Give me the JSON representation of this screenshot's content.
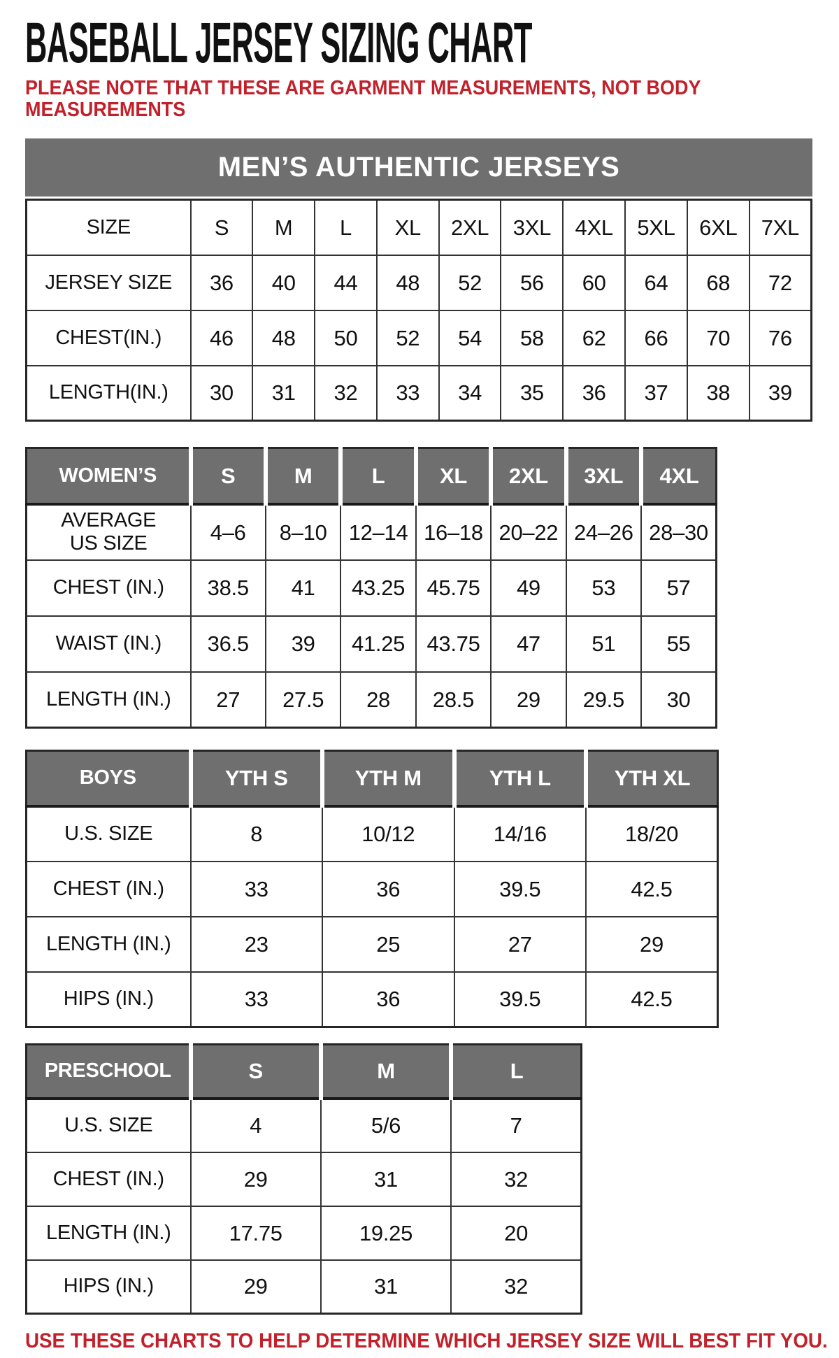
{
  "page": {
    "title": "BASEBALL JERSEY SIZING CHART",
    "note_lines": [
      "PLEASE NOTE THAT THESE ARE GARMENT MEASUREMENTS, NOT BODY",
      "MEASUREMENTS"
    ],
    "footer_note": "USE THESE CHARTS TO HELP DETERMINE WHICH JERSEY SIZE WILL BEST FIT YOU."
  },
  "colors": {
    "header_gray": "#6f6f6f",
    "note_red": "#c2202a",
    "border_dark": "#333333",
    "text_black": "#111111"
  },
  "tables": {
    "mens": {
      "banner": "MEN’S AUTHENTIC JERSEYS",
      "header": [
        "SIZE",
        "S",
        "M",
        "L",
        "XL",
        "2XL",
        "3XL",
        "4XL",
        "5XL",
        "6XL",
        "7XL"
      ],
      "rows": [
        [
          "JERSEY SIZE",
          "36",
          "40",
          "44",
          "48",
          "52",
          "56",
          "60",
          "64",
          "68",
          "72"
        ],
        [
          "CHEST(IN.)",
          "46",
          "48",
          "50",
          "52",
          "54",
          "58",
          "62",
          "66",
          "70",
          "76"
        ],
        [
          "LENGTH(IN.)",
          "30",
          "31",
          "32",
          "33",
          "34",
          "35",
          "36",
          "37",
          "38",
          "39"
        ]
      ]
    },
    "womens": {
      "header": [
        "WOMEN’S",
        "S",
        "M",
        "L",
        "XL",
        "2XL",
        "3XL",
        "4XL"
      ],
      "rows": [
        [
          "AVERAGE\nUS SIZE",
          "4–6",
          "8–10",
          "12–14",
          "16–18",
          "20–22",
          "24–26",
          "28–30"
        ],
        [
          "CHEST (IN.)",
          "38.5",
          "41",
          "43.25",
          "45.75",
          "49",
          "53",
          "57"
        ],
        [
          "WAIST (IN.)",
          "36.5",
          "39",
          "41.25",
          "43.75",
          "47",
          "51",
          "55"
        ],
        [
          "LENGTH (IN.)",
          "27",
          "27.5",
          "28",
          "28.5",
          "29",
          "29.5",
          "30"
        ]
      ]
    },
    "boys": {
      "header": [
        "BOYS",
        "YTH S",
        "YTH M",
        "YTH L",
        "YTH XL"
      ],
      "rows": [
        [
          "U.S. SIZE",
          "8",
          "10/12",
          "14/16",
          "18/20"
        ],
        [
          "CHEST (IN.)",
          "33",
          "36",
          "39.5",
          "42.5"
        ],
        [
          "LENGTH (IN.)",
          "23",
          "25",
          "27",
          "29"
        ],
        [
          "HIPS (IN.)",
          "33",
          "36",
          "39.5",
          "42.5"
        ]
      ]
    },
    "preschool": {
      "header": [
        "PRESCHOOL",
        "S",
        "M",
        "L"
      ],
      "rows": [
        [
          "U.S. SIZE",
          "4",
          "5/6",
          "7"
        ],
        [
          "CHEST (IN.)",
          "29",
          "31",
          "32"
        ],
        [
          "LENGTH (IN.)",
          "17.75",
          "19.25",
          "20"
        ],
        [
          "HIPS (IN.)",
          "29",
          "31",
          "32"
        ]
      ]
    }
  }
}
